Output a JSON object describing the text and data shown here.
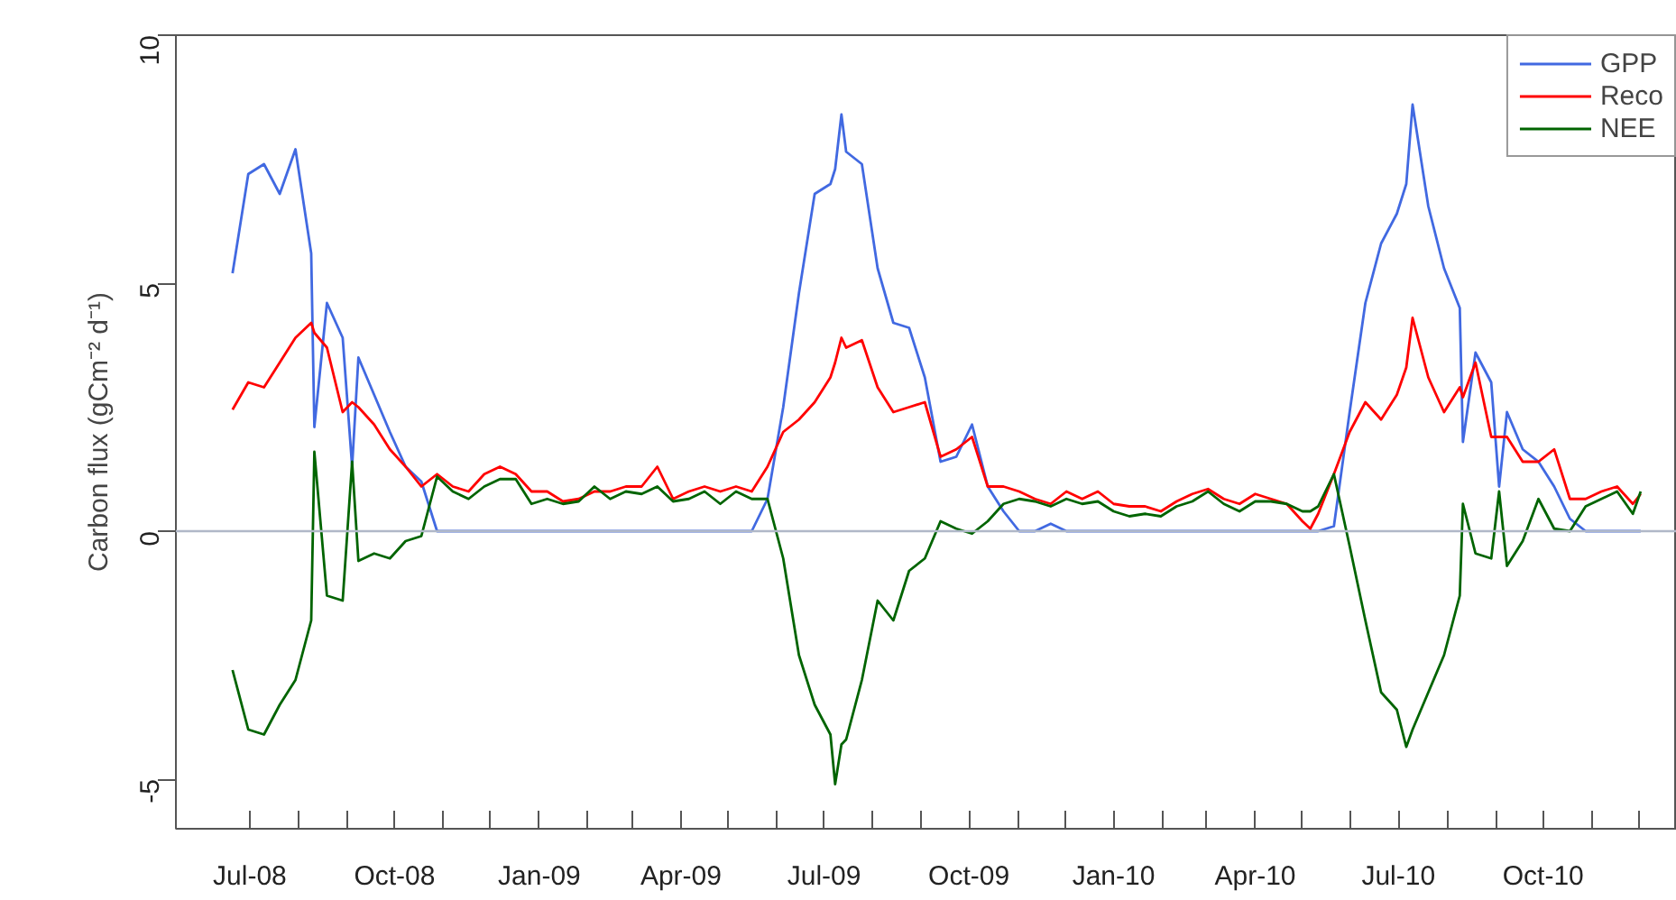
{
  "chart_data": {
    "type": "line",
    "ylabel": "Carbon flux (gCm⁻² d⁻¹)",
    "x": [
      "2008-06-20",
      "2008-06-30",
      "2008-07-10",
      "2008-07-20",
      "2008-07-30",
      "2008-08-09",
      "2008-08-11",
      "2008-08-19",
      "2008-08-29",
      "2008-09-04",
      "2008-09-08",
      "2008-09-18",
      "2008-09-28",
      "2008-10-08",
      "2008-10-18",
      "2008-10-28",
      "2008-11-07",
      "2008-11-17",
      "2008-11-27",
      "2008-12-07",
      "2008-12-17",
      "2008-12-27",
      "2009-01-06",
      "2009-01-16",
      "2009-01-26",
      "2009-02-05",
      "2009-02-15",
      "2009-02-25",
      "2009-03-07",
      "2009-03-17",
      "2009-03-27",
      "2009-04-06",
      "2009-04-16",
      "2009-04-26",
      "2009-05-06",
      "2009-05-16",
      "2009-05-26",
      "2009-06-05",
      "2009-06-15",
      "2009-06-25",
      "2009-07-05",
      "2009-07-08",
      "2009-07-12",
      "2009-07-15",
      "2009-07-25",
      "2009-08-04",
      "2009-08-14",
      "2009-08-24",
      "2009-09-03",
      "2009-09-13",
      "2009-09-23",
      "2009-10-03",
      "2009-10-13",
      "2009-10-23",
      "2009-11-02",
      "2009-11-12",
      "2009-11-22",
      "2009-12-02",
      "2009-12-12",
      "2009-12-22",
      "2010-01-01",
      "2010-01-11",
      "2010-01-21",
      "2010-01-31",
      "2010-02-10",
      "2010-02-20",
      "2010-03-02",
      "2010-03-12",
      "2010-03-22",
      "2010-04-01",
      "2010-04-11",
      "2010-04-21",
      "2010-05-01",
      "2010-05-06",
      "2010-05-11",
      "2010-05-21",
      "2010-05-31",
      "2010-06-10",
      "2010-06-20",
      "2010-06-30",
      "2010-07-06",
      "2010-07-10",
      "2010-07-20",
      "2010-07-30",
      "2010-08-09",
      "2010-08-11",
      "2010-08-19",
      "2010-08-29",
      "2010-09-03",
      "2010-09-08",
      "2010-09-18",
      "2010-09-28",
      "2010-10-08",
      "2010-10-18",
      "2010-10-28",
      "2010-11-07",
      "2010-11-17",
      "2010-11-27",
      "2010-12-02"
    ],
    "series": [
      {
        "name": "GPP",
        "color": "#4169e1",
        "values": [
          5.2,
          7.2,
          7.4,
          6.8,
          7.7,
          5.6,
          2.1,
          4.6,
          3.9,
          1.3,
          3.5,
          2.75,
          2.0,
          1.3,
          1.0,
          0,
          0,
          0,
          0,
          0,
          0,
          0,
          0,
          0,
          0,
          0,
          0,
          0,
          0,
          0,
          0,
          0,
          0,
          0,
          0,
          0,
          0.65,
          2.5,
          4.8,
          6.8,
          7.0,
          7.3,
          8.4,
          7.65,
          7.4,
          5.3,
          4.2,
          4.1,
          3.1,
          1.4,
          1.5,
          2.15,
          0.9,
          0.4,
          0,
          0,
          0.15,
          0,
          0,
          0,
          0,
          0,
          0,
          0,
          0,
          0,
          0,
          0,
          0,
          0,
          0,
          0,
          0,
          0,
          0,
          0.1,
          2.4,
          4.6,
          5.8,
          6.4,
          7.0,
          8.6,
          6.55,
          5.3,
          4.5,
          1.8,
          3.6,
          3.0,
          0.9,
          2.4,
          1.65,
          1.4,
          0.9,
          0.25,
          0,
          0,
          0,
          0,
          0
        ]
      },
      {
        "name": "Reco",
        "color": "#ff0000",
        "values": [
          2.45,
          3.0,
          2.9,
          3.4,
          3.9,
          4.2,
          4.0,
          3.7,
          2.4,
          2.6,
          2.5,
          2.15,
          1.65,
          1.3,
          0.9,
          1.15,
          0.9,
          0.8,
          1.15,
          1.3,
          1.15,
          0.8,
          0.8,
          0.6,
          0.65,
          0.8,
          0.8,
          0.9,
          0.9,
          1.3,
          0.65,
          0.8,
          0.9,
          0.8,
          0.9,
          0.8,
          1.3,
          2.0,
          2.25,
          2.6,
          3.1,
          3.4,
          3.9,
          3.7,
          3.85,
          2.9,
          2.4,
          2.5,
          2.6,
          1.5,
          1.65,
          1.9,
          0.9,
          0.9,
          0.8,
          0.65,
          0.55,
          0.8,
          0.65,
          0.8,
          0.55,
          0.5,
          0.5,
          0.4,
          0.6,
          0.75,
          0.85,
          0.65,
          0.55,
          0.75,
          0.65,
          0.55,
          0.2,
          0.05,
          0.35,
          1.15,
          2.0,
          2.6,
          2.25,
          2.75,
          3.3,
          4.3,
          3.1,
          2.4,
          2.9,
          2.7,
          3.4,
          1.9,
          1.9,
          1.9,
          1.4,
          1.4,
          1.65,
          0.65,
          0.65,
          0.8,
          0.9,
          0.55,
          0.75
        ]
      },
      {
        "name": "NEE",
        "color": "#006400",
        "values": [
          -2.8,
          -4.0,
          -4.1,
          -3.5,
          -3.0,
          -1.8,
          1.6,
          -1.3,
          -1.4,
          1.4,
          -0.6,
          -0.45,
          -0.55,
          -0.2,
          -0.1,
          1.1,
          0.8,
          0.65,
          0.9,
          1.05,
          1.05,
          0.55,
          0.65,
          0.55,
          0.6,
          0.9,
          0.65,
          0.8,
          0.75,
          0.9,
          0.6,
          0.65,
          0.8,
          0.55,
          0.8,
          0.65,
          0.65,
          -0.55,
          -2.5,
          -3.5,
          -4.1,
          -5.1,
          -4.3,
          -4.2,
          -3.0,
          -1.4,
          -1.8,
          -0.8,
          -0.55,
          0.2,
          0.05,
          -0.05,
          0.2,
          0.55,
          0.65,
          0.6,
          0.5,
          0.65,
          0.55,
          0.6,
          0.4,
          0.3,
          0.35,
          0.3,
          0.5,
          0.6,
          0.8,
          0.55,
          0.4,
          0.6,
          0.6,
          0.55,
          0.4,
          0.4,
          0.5,
          1.15,
          -0.3,
          -1.8,
          -3.25,
          -3.6,
          -4.35,
          -4.0,
          -3.25,
          -2.5,
          -1.3,
          0.55,
          -0.45,
          -0.55,
          0.8,
          -0.7,
          -0.2,
          0.65,
          0.05,
          0.0,
          0.5,
          0.65,
          0.8,
          0.35,
          0.8
        ]
      }
    ],
    "xlim": [
      "2008-05-15",
      "2010-12-25"
    ],
    "xticks": [
      {
        "value": "2008-07",
        "label": "Jul-08"
      },
      {
        "value": "2008-08",
        "label": null
      },
      {
        "value": "2008-09",
        "label": null
      },
      {
        "value": "2008-10",
        "label": "Oct-08"
      },
      {
        "value": "2008-11",
        "label": null
      },
      {
        "value": "2008-12",
        "label": null
      },
      {
        "value": "2009-01",
        "label": "Jan-09"
      },
      {
        "value": "2009-02",
        "label": null
      },
      {
        "value": "2009-03",
        "label": null
      },
      {
        "value": "2009-04",
        "label": "Apr-09"
      },
      {
        "value": "2009-05",
        "label": null
      },
      {
        "value": "2009-06",
        "label": null
      },
      {
        "value": "2009-07",
        "label": "Jul-09"
      },
      {
        "value": "2009-08",
        "label": null
      },
      {
        "value": "2009-09",
        "label": null
      },
      {
        "value": "2009-10",
        "label": "Oct-09"
      },
      {
        "value": "2009-11",
        "label": null
      },
      {
        "value": "2009-12",
        "label": null
      },
      {
        "value": "2010-01",
        "label": "Jan-10"
      },
      {
        "value": "2010-02",
        "label": null
      },
      {
        "value": "2010-03",
        "label": null
      },
      {
        "value": "2010-04",
        "label": "Apr-10"
      },
      {
        "value": "2010-05",
        "label": null
      },
      {
        "value": "2010-06",
        "label": null
      },
      {
        "value": "2010-07",
        "label": "Jul-10"
      },
      {
        "value": "2010-08",
        "label": null
      },
      {
        "value": "2010-09",
        "label": null
      },
      {
        "value": "2010-10",
        "label": "Oct-10"
      },
      {
        "value": "2010-11",
        "label": null
      },
      {
        "value": "2010-12",
        "label": null
      }
    ],
    "ylim": [
      -6,
      10
    ],
    "yticks": [
      -5,
      0,
      5,
      10
    ],
    "ref_lines": [
      {
        "axis": "y",
        "value": 0,
        "color": "#b0b8c8"
      }
    ],
    "grid": false,
    "legend": "top right",
    "line_style": "solid"
  }
}
